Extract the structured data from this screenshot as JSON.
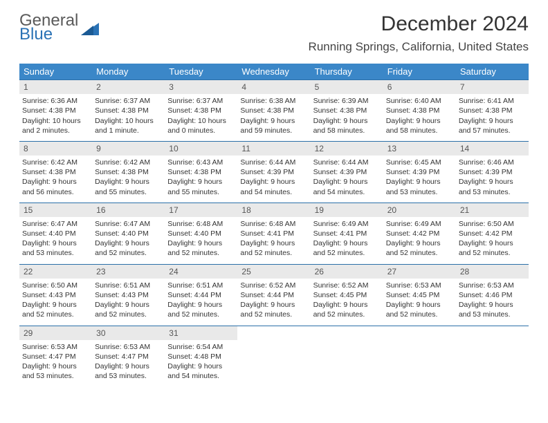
{
  "logo": {
    "text1": "General",
    "text2": "Blue"
  },
  "title": "December 2024",
  "location": "Running Springs, California, United States",
  "colors": {
    "header_bg": "#3b87c8",
    "header_text": "#ffffff",
    "daynum_bg": "#e9e9e9",
    "border": "#2a6fa8",
    "logo_blue": "#2a72b5",
    "logo_gray": "#5a5a5a"
  },
  "weekdays": [
    "Sunday",
    "Monday",
    "Tuesday",
    "Wednesday",
    "Thursday",
    "Friday",
    "Saturday"
  ],
  "weeks": [
    [
      {
        "n": "1",
        "sr": "Sunrise: 6:36 AM",
        "ss": "Sunset: 4:38 PM",
        "dl": "Daylight: 10 hours and 2 minutes."
      },
      {
        "n": "2",
        "sr": "Sunrise: 6:37 AM",
        "ss": "Sunset: 4:38 PM",
        "dl": "Daylight: 10 hours and 1 minute."
      },
      {
        "n": "3",
        "sr": "Sunrise: 6:37 AM",
        "ss": "Sunset: 4:38 PM",
        "dl": "Daylight: 10 hours and 0 minutes."
      },
      {
        "n": "4",
        "sr": "Sunrise: 6:38 AM",
        "ss": "Sunset: 4:38 PM",
        "dl": "Daylight: 9 hours and 59 minutes."
      },
      {
        "n": "5",
        "sr": "Sunrise: 6:39 AM",
        "ss": "Sunset: 4:38 PM",
        "dl": "Daylight: 9 hours and 58 minutes."
      },
      {
        "n": "6",
        "sr": "Sunrise: 6:40 AM",
        "ss": "Sunset: 4:38 PM",
        "dl": "Daylight: 9 hours and 58 minutes."
      },
      {
        "n": "7",
        "sr": "Sunrise: 6:41 AM",
        "ss": "Sunset: 4:38 PM",
        "dl": "Daylight: 9 hours and 57 minutes."
      }
    ],
    [
      {
        "n": "8",
        "sr": "Sunrise: 6:42 AM",
        "ss": "Sunset: 4:38 PM",
        "dl": "Daylight: 9 hours and 56 minutes."
      },
      {
        "n": "9",
        "sr": "Sunrise: 6:42 AM",
        "ss": "Sunset: 4:38 PM",
        "dl": "Daylight: 9 hours and 55 minutes."
      },
      {
        "n": "10",
        "sr": "Sunrise: 6:43 AM",
        "ss": "Sunset: 4:38 PM",
        "dl": "Daylight: 9 hours and 55 minutes."
      },
      {
        "n": "11",
        "sr": "Sunrise: 6:44 AM",
        "ss": "Sunset: 4:39 PM",
        "dl": "Daylight: 9 hours and 54 minutes."
      },
      {
        "n": "12",
        "sr": "Sunrise: 6:44 AM",
        "ss": "Sunset: 4:39 PM",
        "dl": "Daylight: 9 hours and 54 minutes."
      },
      {
        "n": "13",
        "sr": "Sunrise: 6:45 AM",
        "ss": "Sunset: 4:39 PM",
        "dl": "Daylight: 9 hours and 53 minutes."
      },
      {
        "n": "14",
        "sr": "Sunrise: 6:46 AM",
        "ss": "Sunset: 4:39 PM",
        "dl": "Daylight: 9 hours and 53 minutes."
      }
    ],
    [
      {
        "n": "15",
        "sr": "Sunrise: 6:47 AM",
        "ss": "Sunset: 4:40 PM",
        "dl": "Daylight: 9 hours and 53 minutes."
      },
      {
        "n": "16",
        "sr": "Sunrise: 6:47 AM",
        "ss": "Sunset: 4:40 PM",
        "dl": "Daylight: 9 hours and 52 minutes."
      },
      {
        "n": "17",
        "sr": "Sunrise: 6:48 AM",
        "ss": "Sunset: 4:40 PM",
        "dl": "Daylight: 9 hours and 52 minutes."
      },
      {
        "n": "18",
        "sr": "Sunrise: 6:48 AM",
        "ss": "Sunset: 4:41 PM",
        "dl": "Daylight: 9 hours and 52 minutes."
      },
      {
        "n": "19",
        "sr": "Sunrise: 6:49 AM",
        "ss": "Sunset: 4:41 PM",
        "dl": "Daylight: 9 hours and 52 minutes."
      },
      {
        "n": "20",
        "sr": "Sunrise: 6:49 AM",
        "ss": "Sunset: 4:42 PM",
        "dl": "Daylight: 9 hours and 52 minutes."
      },
      {
        "n": "21",
        "sr": "Sunrise: 6:50 AM",
        "ss": "Sunset: 4:42 PM",
        "dl": "Daylight: 9 hours and 52 minutes."
      }
    ],
    [
      {
        "n": "22",
        "sr": "Sunrise: 6:50 AM",
        "ss": "Sunset: 4:43 PM",
        "dl": "Daylight: 9 hours and 52 minutes."
      },
      {
        "n": "23",
        "sr": "Sunrise: 6:51 AM",
        "ss": "Sunset: 4:43 PM",
        "dl": "Daylight: 9 hours and 52 minutes."
      },
      {
        "n": "24",
        "sr": "Sunrise: 6:51 AM",
        "ss": "Sunset: 4:44 PM",
        "dl": "Daylight: 9 hours and 52 minutes."
      },
      {
        "n": "25",
        "sr": "Sunrise: 6:52 AM",
        "ss": "Sunset: 4:44 PM",
        "dl": "Daylight: 9 hours and 52 minutes."
      },
      {
        "n": "26",
        "sr": "Sunrise: 6:52 AM",
        "ss": "Sunset: 4:45 PM",
        "dl": "Daylight: 9 hours and 52 minutes."
      },
      {
        "n": "27",
        "sr": "Sunrise: 6:53 AM",
        "ss": "Sunset: 4:45 PM",
        "dl": "Daylight: 9 hours and 52 minutes."
      },
      {
        "n": "28",
        "sr": "Sunrise: 6:53 AM",
        "ss": "Sunset: 4:46 PM",
        "dl": "Daylight: 9 hours and 53 minutes."
      }
    ],
    [
      {
        "n": "29",
        "sr": "Sunrise: 6:53 AM",
        "ss": "Sunset: 4:47 PM",
        "dl": "Daylight: 9 hours and 53 minutes."
      },
      {
        "n": "30",
        "sr": "Sunrise: 6:53 AM",
        "ss": "Sunset: 4:47 PM",
        "dl": "Daylight: 9 hours and 53 minutes."
      },
      {
        "n": "31",
        "sr": "Sunrise: 6:54 AM",
        "ss": "Sunset: 4:48 PM",
        "dl": "Daylight: 9 hours and 54 minutes."
      },
      null,
      null,
      null,
      null
    ]
  ]
}
